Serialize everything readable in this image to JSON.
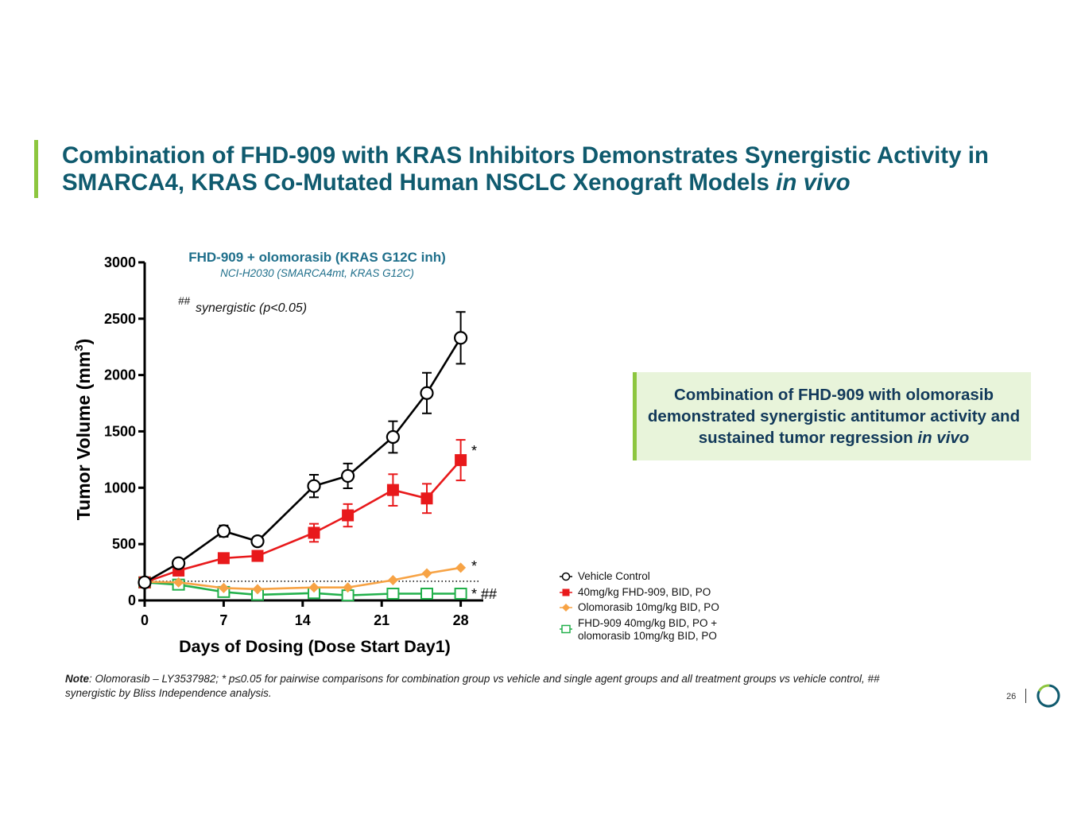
{
  "slide": {
    "title_main": "Combination of FHD-909 with KRAS Inhibitors Demonstrates Synergistic Activity in SMARCA4, KRAS Co-Mutated Human NSCLC Xenograft Models",
    "title_italic": "in vivo",
    "page_number": "26",
    "accent_color": "#8dc63f",
    "title_color": "#0f5a6e",
    "logo_icon": "circle-logo-icon"
  },
  "callout": {
    "text": "Combination of FHD-909 with olomorasib demonstrated synergistic antitumor activity and sustained tumor regression",
    "italic": "in vivo"
  },
  "note": {
    "label": "Note",
    "text": ": Olomorasib – LY3537982; * p≤0.05 for pairwise comparisons for combination group vs vehicle and single agent groups and all treatment groups vs vehicle control, ## synergistic by Bliss Independence analysis."
  },
  "chart_data": {
    "type": "line",
    "title": "FHD-909 + olomorasib (KRAS G12C inh)",
    "subtitle": "NCI-H2030 (SMARCA4mt, KRAS G12C)",
    "annotation": {
      "marker": "##",
      "text": "synergistic (p<0.05)"
    },
    "xlabel": "Days of Dosing (Dose Start Day1)",
    "ylabel": "Tumor Volume (mm",
    "ylabel_sup": "3",
    "ylabel_close": ")",
    "xlim": [
      0,
      30
    ],
    "ylim": [
      0,
      3000
    ],
    "xticks": [
      0,
      7,
      14,
      21,
      28
    ],
    "yticks": [
      0,
      500,
      1000,
      1500,
      2000,
      2500,
      3000
    ],
    "baseline_reference": 170,
    "grid": false,
    "legend_position": "bottom-right outside",
    "series": [
      {
        "name": "Vehicle Control",
        "color": "#000000",
        "marker": "open-circle",
        "x": [
          0,
          3,
          7,
          10,
          15,
          18,
          22,
          25,
          28
        ],
        "y": [
          160,
          330,
          615,
          525,
          1015,
          1105,
          1450,
          1840,
          2330
        ],
        "err": [
          20,
          30,
          50,
          30,
          100,
          110,
          140,
          180,
          230
        ]
      },
      {
        "name": "40mg/kg FHD-909, BID, PO",
        "color": "#e8191b",
        "marker": "filled-square",
        "x": [
          0,
          3,
          7,
          10,
          15,
          18,
          22,
          25,
          28
        ],
        "y": [
          160,
          265,
          375,
          395,
          600,
          755,
          980,
          905,
          1245
        ],
        "err": [
          20,
          25,
          30,
          30,
          80,
          100,
          140,
          130,
          180
        ],
        "significance": "*"
      },
      {
        "name": "Olomorasib 10mg/kg BID, PO",
        "color": "#f7a345",
        "marker": "filled-diamond",
        "x": [
          0,
          3,
          7,
          10,
          15,
          18,
          22,
          25,
          28
        ],
        "y": [
          165,
          160,
          110,
          100,
          115,
          115,
          180,
          240,
          290
        ],
        "err": [
          0,
          0,
          0,
          0,
          0,
          0,
          0,
          0,
          0
        ],
        "significance": "*"
      },
      {
        "name": "FHD-909 40mg/kg BID, PO + olomorasib 10mg/kg BID, PO",
        "color": "#22b04b",
        "marker": "open-square",
        "legend_lines": [
          "FHD-909 40mg/kg BID, PO +",
          "olomorasib 10mg/kg BID, PO"
        ],
        "x": [
          0,
          3,
          7,
          10,
          15,
          18,
          22,
          25,
          28
        ],
        "y": [
          160,
          140,
          75,
          50,
          65,
          45,
          60,
          60,
          60
        ],
        "err": [
          0,
          0,
          0,
          0,
          0,
          0,
          0,
          0,
          0
        ],
        "significance": "* ##"
      }
    ]
  }
}
